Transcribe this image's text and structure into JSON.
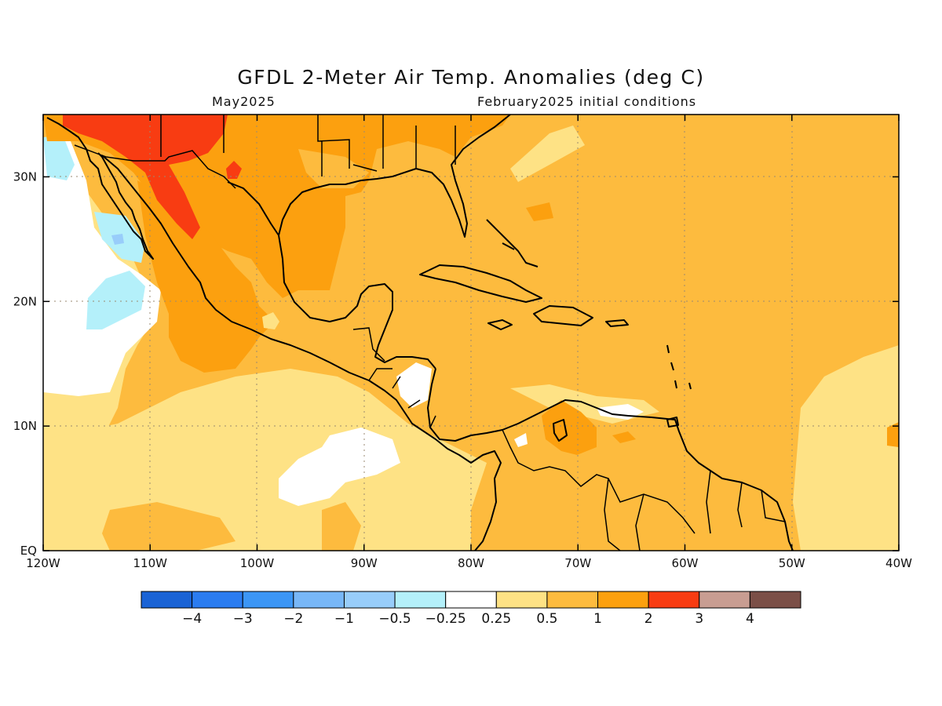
{
  "title": "GFDL 2-Meter Air Temp. Anomalies (deg C)",
  "subtitle_left": "May2025",
  "subtitle_right": "February2025 initial conditions",
  "map": {
    "lon_range": [
      -120,
      -40
    ],
    "lat_range": [
      0,
      35
    ],
    "lon_ticks": [
      {
        "value": -120,
        "label": "120W"
      },
      {
        "value": -110,
        "label": "110W"
      },
      {
        "value": -100,
        "label": "100W"
      },
      {
        "value": -90,
        "label": "90W"
      },
      {
        "value": -80,
        "label": "80W"
      },
      {
        "value": -70,
        "label": "70W"
      },
      {
        "value": -60,
        "label": "60W"
      },
      {
        "value": -50,
        "label": "50W"
      },
      {
        "value": -40,
        "label": "40W"
      }
    ],
    "lat_ticks": [
      {
        "value": 0,
        "label": "EQ"
      },
      {
        "value": 10,
        "label": "10N"
      },
      {
        "value": 20,
        "label": "20N"
      },
      {
        "value": 30,
        "label": "30N"
      }
    ],
    "grid": "dotted"
  },
  "colorbar": {
    "colors": [
      "#1a63d5",
      "#2b7cf0",
      "#3c96f5",
      "#78b7f7",
      "#98cdfa",
      "#b4f0fa",
      "#ffffff",
      "#fee285",
      "#fdbb3e",
      "#fca00f",
      "#f83c12",
      "#c89d92",
      "#7b4f47"
    ],
    "labels": [
      "-4",
      "-3",
      "-2",
      "-1",
      "-0.5",
      "-0.25",
      "0.25",
      "0.5",
      "1",
      "2",
      "3",
      "4"
    ]
  }
}
